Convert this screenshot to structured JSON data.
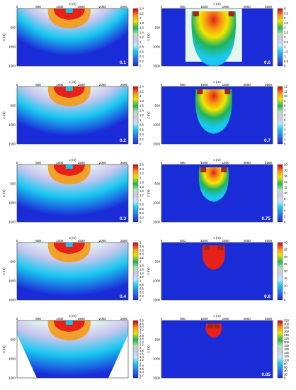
{
  "figure": {
    "x_axis_label": "x (m)",
    "y_axis_label": "z (m)",
    "x_ticks": [
      "0",
      "500",
      "1000",
      "1500",
      "2000",
      "2500"
    ],
    "z_ticks": [
      "500",
      "1000",
      "1500"
    ],
    "colors": {
      "blue": "#1a2bd8",
      "cyan": "#19c8f0",
      "pale": "#e6f7f2",
      "lavender": "#c9c6ee",
      "green": "#1fb35a",
      "yellow": "#f2e600",
      "orange": "#f59a14",
      "red": "#e8201a",
      "darkred": "#a2251a"
    },
    "panels": [
      {
        "label": "0.1",
        "colorbar_ticks": [
          "2.4",
          "2.2",
          "2",
          "1.8",
          "1.6",
          "1.4",
          "1.2",
          "1",
          "0.8",
          "0.6",
          "0.4",
          "0.2",
          "0"
        ]
      },
      {
        "label": "0.6",
        "colorbar_ticks": [
          "6",
          "5.5",
          "5",
          "4.5",
          "4",
          "3.5",
          "3",
          "2.5",
          "2",
          "1.5",
          "1",
          "0.5",
          "0"
        ]
      },
      {
        "label": "0.2",
        "colorbar_ticks": [
          "2.4",
          "2.2",
          "2",
          "1.8",
          "1.6",
          "1.4",
          "1.2",
          "1",
          "0.8",
          "0.6",
          "0.4",
          "0.2",
          "0"
        ]
      },
      {
        "label": "0.7",
        "colorbar_ticks": [
          "12",
          "11",
          "10",
          "9",
          "8",
          "7",
          "6",
          "5",
          "4",
          "3",
          "2",
          "1",
          "0"
        ]
      },
      {
        "label": "0.3",
        "colorbar_ticks": [
          "2.6",
          "2.4",
          "2.2",
          "2",
          "1.8",
          "1.6",
          "1.4",
          "1.2",
          "1",
          "0.8",
          "0.6",
          "0.4",
          "0.2",
          "0"
        ]
      },
      {
        "label": "0.75",
        "colorbar_ticks": [
          "20",
          "18",
          "16",
          "14",
          "12",
          "10",
          "8",
          "6",
          "4",
          "2",
          "0"
        ]
      },
      {
        "label": "0.4",
        "colorbar_ticks": [
          "3",
          "2.8",
          "2.6",
          "2.4",
          "2.2",
          "2",
          "1.8",
          "1.6",
          "1.4",
          "1.2",
          "1",
          "0.8",
          "0.6",
          "0.4",
          "0.2",
          "0"
        ]
      },
      {
        "label": "0.8",
        "colorbar_ticks": [
          "40",
          "35",
          "30",
          "25",
          "20",
          "15",
          "10",
          "5",
          "0"
        ]
      },
      {
        "label": "0.5",
        "colorbar_ticks": [
          "3.8",
          "3.6",
          "3.4",
          "3.2",
          "3",
          "2.8",
          "2.6",
          "2.4",
          "2.2",
          "2",
          "1.8",
          "1.6",
          "1.4",
          "1.2",
          "1",
          "0.8",
          "0.6",
          "0.4",
          "0.2",
          "0"
        ]
      },
      {
        "label": "0.85",
        "colorbar_ticks": [
          "320",
          "300",
          "280",
          "260",
          "240",
          "220",
          "200",
          "180",
          "160",
          "140",
          "120",
          "100",
          "80",
          "60",
          "40",
          "20",
          "0"
        ]
      }
    ]
  }
}
